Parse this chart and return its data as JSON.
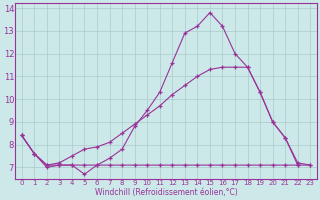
{
  "xlabel": "Windchill (Refroidissement éolien,°C)",
  "xlim": [
    -0.5,
    23.5
  ],
  "ylim": [
    6.5,
    14.2
  ],
  "yticks": [
    7,
    8,
    9,
    10,
    11,
    12,
    13,
    14
  ],
  "xticks": [
    0,
    1,
    2,
    3,
    4,
    5,
    6,
    7,
    8,
    9,
    10,
    11,
    12,
    13,
    14,
    15,
    16,
    17,
    18,
    19,
    20,
    21,
    22,
    23
  ],
  "background_color": "#cce8e8",
  "grid_color": "#aacaca",
  "line_color": "#993399",
  "line1_x": [
    0,
    1,
    2,
    3,
    4,
    5,
    6,
    7,
    8,
    9,
    10,
    11,
    12,
    13,
    14,
    15,
    16,
    17,
    18,
    19,
    20,
    21,
    22
  ],
  "line1_y": [
    8.4,
    7.6,
    7.0,
    7.1,
    7.1,
    6.7,
    7.1,
    7.4,
    7.8,
    8.8,
    9.5,
    10.3,
    11.6,
    12.9,
    13.2,
    13.8,
    13.2,
    12.0,
    11.4,
    10.3,
    9.0,
    8.3,
    7.1
  ],
  "line2_x": [
    0,
    1,
    2,
    3,
    4,
    5,
    6,
    7,
    8,
    9,
    10,
    11,
    12,
    13,
    14,
    15,
    16,
    17,
    18,
    19,
    20,
    21,
    22,
    23
  ],
  "line2_y": [
    8.4,
    7.6,
    7.1,
    7.1,
    7.1,
    7.1,
    7.1,
    7.1,
    7.1,
    7.1,
    7.1,
    7.1,
    7.1,
    7.1,
    7.1,
    7.1,
    7.1,
    7.1,
    7.1,
    7.1,
    7.1,
    7.1,
    7.1,
    7.1
  ],
  "line3_x": [
    0,
    1,
    2,
    3,
    4,
    5,
    6,
    7,
    8,
    9,
    10,
    11,
    12,
    13,
    14,
    15,
    16,
    17,
    18,
    19,
    20,
    21,
    22,
    23
  ],
  "line3_y": [
    8.4,
    7.6,
    7.1,
    7.2,
    7.5,
    7.8,
    7.9,
    8.1,
    8.5,
    8.9,
    9.3,
    9.7,
    10.2,
    10.6,
    11.0,
    11.3,
    11.4,
    11.4,
    11.4,
    10.3,
    9.0,
    8.3,
    7.2,
    7.1
  ]
}
